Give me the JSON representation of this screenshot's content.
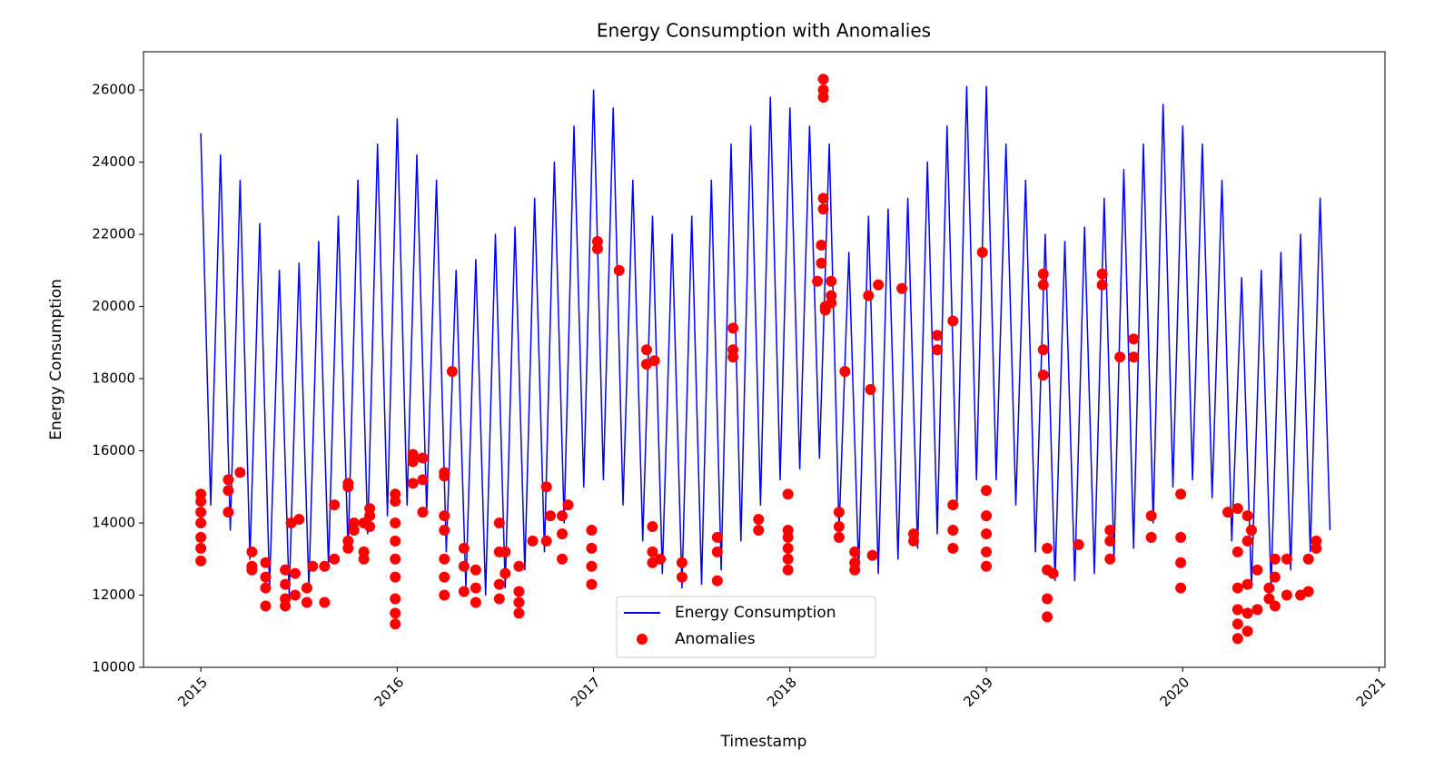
{
  "chart_data": {
    "type": "line",
    "title": "Energy Consumption with Anomalies",
    "x_label": "Timestamp",
    "y_label": "Energy Consumption",
    "xlim": [
      2014.708,
      2021.03
    ],
    "ylim": [
      10000,
      27060
    ],
    "xticks": [
      2015,
      2016,
      2017,
      2018,
      2019,
      2020,
      2021
    ],
    "yticks": [
      10000,
      12000,
      14000,
      16000,
      18000,
      20000,
      22000,
      24000,
      26000
    ],
    "grid": false,
    "legend": "lower center",
    "series": [
      {
        "name": "Energy Consumption",
        "type": "line",
        "color": "#0000ff",
        "x": [
          2015,
          2015.05,
          2015.1,
          2015.15,
          2015.2,
          2015.25,
          2015.3,
          2015.35,
          2015.4,
          2015.45,
          2015.5,
          2015.55,
          2015.6,
          2015.65,
          2015.7,
          2015.75,
          2015.8,
          2015.85,
          2015.9,
          2015.95,
          2016,
          2016.05,
          2016.1,
          2016.15,
          2016.2,
          2016.25,
          2016.3,
          2016.35,
          2016.4,
          2016.45,
          2016.5,
          2016.55,
          2016.6,
          2016.65,
          2016.7,
          2016.75,
          2016.8,
          2016.85,
          2016.9,
          2016.95,
          2017,
          2017.05,
          2017.1,
          2017.15,
          2017.2,
          2017.25,
          2017.3,
          2017.35,
          2017.4,
          2017.45,
          2017.5,
          2017.55,
          2017.6,
          2017.65,
          2017.7,
          2017.75,
          2017.8,
          2017.85,
          2017.9,
          2017.95,
          2018,
          2018.05,
          2018.1,
          2018.15,
          2018.2,
          2018.25,
          2018.3,
          2018.35,
          2018.4,
          2018.45,
          2018.5,
          2018.55,
          2018.6,
          2018.65,
          2018.7,
          2018.75,
          2018.8,
          2018.85,
          2018.9,
          2018.95,
          2019,
          2019.05,
          2019.1,
          2019.15,
          2019.2,
          2019.25,
          2019.3,
          2019.35,
          2019.4,
          2019.45,
          2019.5,
          2019.55,
          2019.6,
          2019.65,
          2019.7,
          2019.75,
          2019.8,
          2019.85,
          2019.9,
          2019.95,
          2020,
          2020.05,
          2020.1,
          2020.15,
          2020.2,
          2020.25,
          2020.3,
          2020.35,
          2020.4,
          2020.45,
          2020.5,
          2020.55,
          2020.6,
          2020.65,
          2020.7,
          2020.75
        ],
        "values": [
          24800,
          14500,
          24200,
          13800,
          23500,
          13000,
          22300,
          12200,
          21000,
          12000,
          21200,
          12200,
          21800,
          12800,
          22500,
          13200,
          23500,
          13700,
          24500,
          14200,
          25200,
          14500,
          24200,
          14300,
          23500,
          13200,
          21000,
          12200,
          21300,
          12000,
          22000,
          12200,
          22200,
          12700,
          23000,
          13200,
          24000,
          14000,
          25000,
          15000,
          26000,
          15200,
          25500,
          14500,
          23500,
          13500,
          22500,
          12600,
          22000,
          12200,
          22500,
          12300,
          23500,
          12700,
          24500,
          13500,
          25000,
          14500,
          25800,
          15200,
          25500,
          15500,
          25000,
          15800,
          24500,
          13800,
          21500,
          12700,
          22500,
          12600,
          22700,
          13000,
          23000,
          13300,
          24000,
          13700,
          25000,
          14500,
          26100,
          15200,
          26100,
          15200,
          24500,
          14500,
          23500,
          13200,
          22000,
          12400,
          21800,
          12400,
          22200,
          12600,
          23000,
          13000,
          23800,
          13300,
          24500,
          14000,
          25600,
          15000,
          25000,
          15200,
          24500,
          14700,
          23500,
          13500,
          20800,
          12200,
          21000,
          12200,
          21500,
          12700,
          22000,
          13200,
          23000,
          13800
        ]
      },
      {
        "name": "Anomalies",
        "type": "scatter",
        "color": "#ff0000",
        "x": [
          2015,
          2015,
          2015,
          2015,
          2015,
          2015,
          2015,
          2015.14,
          2015.14,
          2015.14,
          2015.2,
          2015.26,
          2015.26,
          2015.26,
          2015.33,
          2015.33,
          2015.33,
          2015.33,
          2015.43,
          2015.43,
          2015.43,
          2015.43,
          2015.46,
          2015.5,
          2015.48,
          2015.48,
          2015.54,
          2015.54,
          2015.57,
          2015.63,
          2015.63,
          2015.68,
          2015.68,
          2015.75,
          2015.75,
          2015.75,
          2015.75,
          2015.78,
          2015.78,
          2015.83,
          2015.83,
          2015.83,
          2015.86,
          2015.86,
          2015.86,
          2015.99,
          2015.99,
          2015.99,
          2015.99,
          2015.99,
          2015.99,
          2015.99,
          2015.99,
          2015.99,
          2016.08,
          2016.08,
          2016.08,
          2016.13,
          2016.13,
          2016.13,
          2016.24,
          2016.24,
          2016.24,
          2016.24,
          2016.24,
          2016.24,
          2016.24,
          2016.28,
          2016.34,
          2016.34,
          2016.34,
          2016.4,
          2016.4,
          2016.4,
          2016.52,
          2016.52,
          2016.52,
          2016.52,
          2016.55,
          2016.55,
          2016.62,
          2016.62,
          2016.62,
          2016.62,
          2016.69,
          2016.76,
          2016.76,
          2016.78,
          2016.84,
          2016.84,
          2016.84,
          2016.87,
          2016.99,
          2016.99,
          2016.99,
          2016.99,
          2017.02,
          2017.02,
          2017.13,
          2017.27,
          2017.27,
          2017.31,
          2017.3,
          2017.3,
          2017.3,
          2017.34,
          2017.45,
          2017.45,
          2017.63,
          2017.63,
          2017.63,
          2017.71,
          2017.71,
          2017.71,
          2017.84,
          2017.84,
          2017.99,
          2017.99,
          2017.99,
          2017.99,
          2017.99,
          2017.99,
          2018.14,
          2018.16,
          2018.16,
          2018.17,
          2018.17,
          2018.17,
          2018.17,
          2018.17,
          2018.18,
          2018.18,
          2018.21,
          2018.21,
          2018.21,
          2018.25,
          2018.25,
          2018.25,
          2018.28,
          2018.33,
          2018.33,
          2018.33,
          2018.4,
          2018.41,
          2018.42,
          2018.45,
          2018.57,
          2018.63,
          2018.63,
          2018.75,
          2018.75,
          2018.83,
          2018.83,
          2018.83,
          2018.83,
          2018.98,
          2019,
          2019,
          2019,
          2019,
          2019,
          2019.29,
          2019.29,
          2019.29,
          2019.29,
          2019.31,
          2019.31,
          2019.31,
          2019.31,
          2019.34,
          2019.47,
          2019.59,
          2019.59,
          2019.63,
          2019.63,
          2019.63,
          2019.68,
          2019.75,
          2019.75,
          2019.84,
          2019.84,
          2019.99,
          2019.99,
          2019.99,
          2019.99,
          2020.23,
          2020.28,
          2020.28,
          2020.28,
          2020.28,
          2020.28,
          2020.28,
          2020.33,
          2020.33,
          2020.33,
          2020.33,
          2020.33,
          2020.35,
          2020.38,
          2020.38,
          2020.44,
          2020.44,
          2020.47,
          2020.47,
          2020.47,
          2020.53,
          2020.53,
          2020.6,
          2020.64,
          2020.64,
          2020.68,
          2020.68
        ],
        "values": [
          12950,
          13300,
          13600,
          14000,
          14300,
          14600,
          14800,
          15200,
          14900,
          14300,
          15400,
          13200,
          12800,
          12700,
          12900,
          12500,
          12200,
          11700,
          12700,
          12300,
          11900,
          11700,
          14000,
          14100,
          12600,
          12000,
          12200,
          11800,
          12800,
          11800,
          12800,
          14500,
          13000,
          15100,
          15000,
          13500,
          13300,
          14000,
          13800,
          13000,
          13200,
          14000,
          14400,
          14200,
          13900,
          11200,
          11500,
          11900,
          12500,
          13000,
          13500,
          14000,
          14600,
          14800,
          15100,
          15900,
          15700,
          15800,
          14300,
          15200,
          12000,
          12500,
          13000,
          13800,
          14200,
          15400,
          15300,
          18200,
          12100,
          12800,
          13300,
          11800,
          12200,
          12700,
          14000,
          11900,
          12300,
          13200,
          13200,
          12600,
          11500,
          11800,
          12100,
          12800,
          13500,
          15000,
          13500,
          14200,
          13000,
          13700,
          14200,
          14500,
          12300,
          12800,
          13300,
          13800,
          21800,
          21600,
          21000,
          18800,
          18400,
          18500,
          13900,
          12900,
          13200,
          13000,
          12500,
          12900,
          12400,
          13200,
          13600,
          19400,
          18800,
          18600,
          14100,
          13800,
          12700,
          13000,
          13300,
          13600,
          13800,
          14800,
          20700,
          21700,
          21200,
          26300,
          26000,
          25800,
          23000,
          22700,
          20000,
          19900,
          20700,
          20300,
          20100,
          14300,
          13900,
          13600,
          18200,
          13200,
          12900,
          12700,
          20300,
          17700,
          13100,
          20600,
          20500,
          13700,
          13500,
          19200,
          18800,
          19600,
          14500,
          13800,
          13300,
          21500,
          12800,
          13200,
          13700,
          14200,
          14900,
          20900,
          20600,
          18800,
          18100,
          11400,
          11900,
          12700,
          13300,
          12600,
          13400,
          20900,
          20600,
          13000,
          13500,
          13800,
          18600,
          19100,
          18600,
          13600,
          14200,
          12200,
          12900,
          13600,
          14800,
          14300,
          10800,
          11200,
          11600,
          12200,
          13200,
          14400,
          11000,
          11500,
          12300,
          13500,
          14200,
          13800,
          11600,
          12700,
          11900,
          12200,
          11700,
          12500,
          13000,
          13000,
          12000,
          12000,
          13000,
          12100,
          13300,
          13500
        ]
      }
    ]
  }
}
